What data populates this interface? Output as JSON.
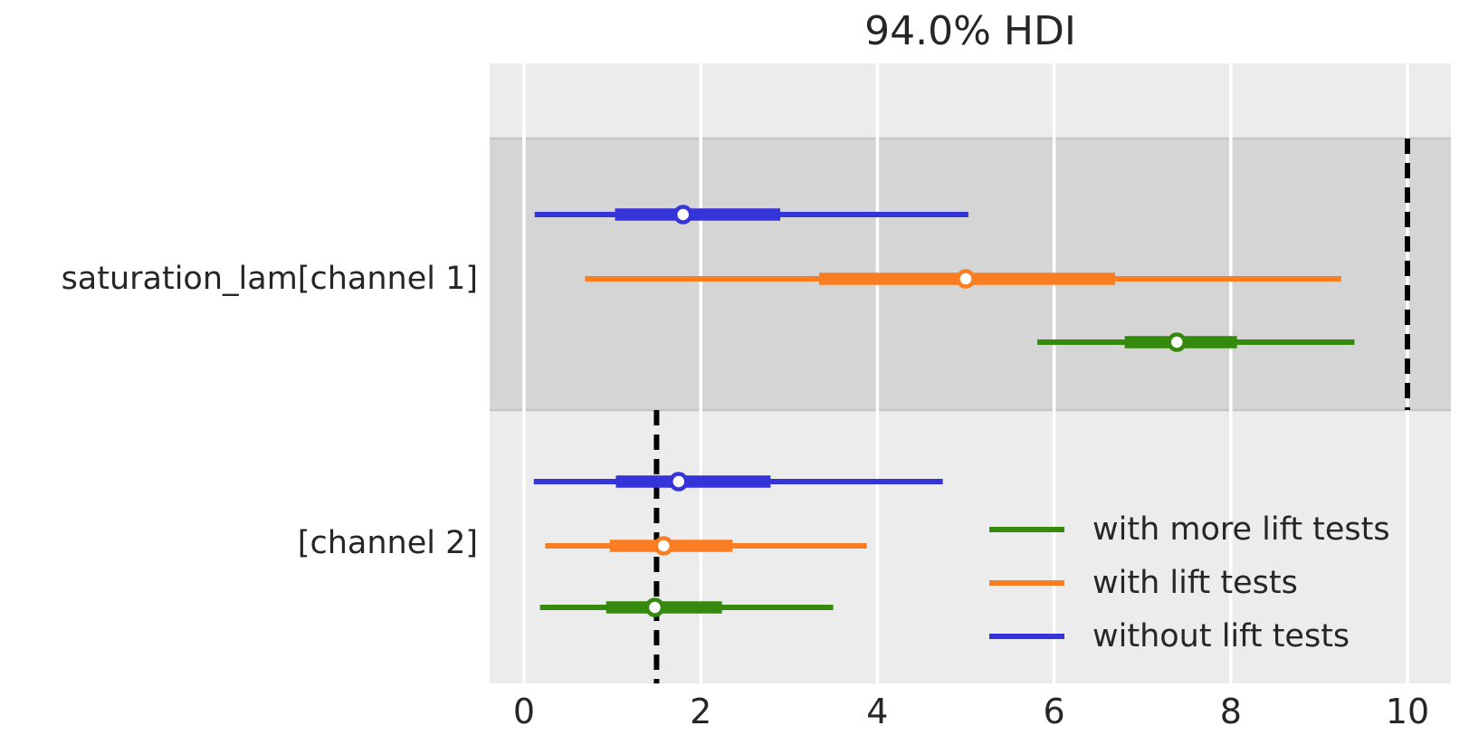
{
  "title": "94.0% HDI",
  "y_axis_labels": [
    "saturation_lam[channel 1]",
    "[channel 2]"
  ],
  "x_tick_labels": [
    "0",
    "2",
    "4",
    "6",
    "8",
    "10"
  ],
  "legend": {
    "position": "lower right",
    "items": [
      {
        "label": "with more lift tests",
        "color": "#35890d"
      },
      {
        "label": "with lift tests",
        "color": "#fb7d22"
      },
      {
        "label": "without lift tests",
        "color": "#3534d9"
      }
    ]
  },
  "colors": {
    "figure_background": "#ffffff",
    "axes_background": "#ececec",
    "row_band": "#d5d5d5",
    "band_edge": "#c6c6c6",
    "gridline": "#ffffff",
    "text": "#262626",
    "reference_line": "#000000",
    "marker_fill": "#ffffff"
  },
  "chart_data": {
    "type": "forest",
    "title": "94.0% HDI",
    "hdi_probability": "94.0%",
    "xlabel": "",
    "x_ticks": [
      0,
      2,
      4,
      6,
      8,
      10
    ],
    "xlim": [
      -0.39,
      10.49
    ],
    "grid": "vertical white gridlines on gray axes background",
    "legend_position": "lower right",
    "series_order_top_to_bottom": [
      "without lift tests",
      "with lift tests",
      "with more lift tests"
    ],
    "groups": [
      {
        "parameter": "saturation_lam[channel 1]",
        "shaded_band": true,
        "reference_line_x": 10,
        "rows": [
          {
            "series": "without lift tests",
            "color": "#3534d9",
            "hdi_94": [
              0.12,
              5.03
            ],
            "interquartile": [
              1.03,
              2.9
            ],
            "point_estimate": 1.8
          },
          {
            "series": "with lift tests",
            "color": "#fb7d22",
            "hdi_94": [
              0.69,
              9.25
            ],
            "interquartile": [
              3.34,
              6.69
            ],
            "point_estimate": 5.0
          },
          {
            "series": "with more lift tests",
            "color": "#35890d",
            "hdi_94": [
              5.81,
              9.4
            ],
            "interquartile": [
              6.8,
              8.07
            ],
            "point_estimate": 7.39
          }
        ]
      },
      {
        "parameter": "[channel 2]",
        "shaded_band": false,
        "reference_line_x": 1.5,
        "rows": [
          {
            "series": "without lift tests",
            "color": "#3534d9",
            "hdi_94": [
              0.11,
              4.74
            ],
            "interquartile": [
              1.04,
              2.79
            ],
            "point_estimate": 1.75
          },
          {
            "series": "with lift tests",
            "color": "#fb7d22",
            "hdi_94": [
              0.24,
              3.88
            ],
            "interquartile": [
              0.97,
              2.36
            ],
            "point_estimate": 1.58
          },
          {
            "series": "with more lift tests",
            "color": "#35890d",
            "hdi_94": [
              0.18,
              3.5
            ],
            "interquartile": [
              0.93,
              2.24
            ],
            "point_estimate": 1.48
          }
        ]
      }
    ]
  }
}
